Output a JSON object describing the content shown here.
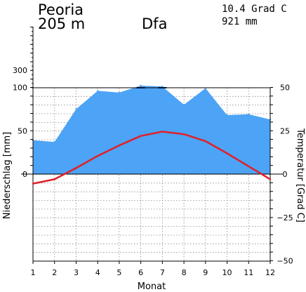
{
  "header": {
    "station": "Peoria",
    "elevation": "205 m",
    "climate_class": "Dfa",
    "mean_temperature": "10.4 Grad C",
    "annual_precipitation": "921 mm"
  },
  "chart_data": {
    "type": "area",
    "xlabel": "Monat",
    "categories": [
      "1",
      "2",
      "3",
      "4",
      "5",
      "6",
      "7",
      "8",
      "9",
      "10",
      "11",
      "12"
    ],
    "x": [
      1,
      2,
      3,
      4,
      5,
      6,
      7,
      8,
      9,
      10,
      11,
      12
    ],
    "series": [
      {
        "key": "precipitation",
        "type": "area",
        "axis": "left",
        "values": [
          39,
          37,
          75,
          96,
          94,
          102,
          101,
          80,
          99,
          68,
          69,
          63
        ],
        "color": "#4da3f5"
      },
      {
        "key": "temperature",
        "type": "line",
        "axis": "right",
        "values": [
          -5.5,
          -3.0,
          3.5,
          10.5,
          16.5,
          22.0,
          24.5,
          23.0,
          19.0,
          12.0,
          4.5,
          -3.0
        ],
        "color": "#e0202a"
      }
    ],
    "left_axis": {
      "label": "Niederschlag [mm]",
      "ticks": [
        0,
        50,
        100,
        300
      ],
      "ylim": [
        -100,
        500
      ]
    },
    "right_axis": {
      "label": "Temperatur [Grad C]",
      "ticks": [
        -50,
        -25,
        0,
        25,
        50
      ],
      "ylim": [
        -50,
        50
      ]
    },
    "grid": true
  }
}
